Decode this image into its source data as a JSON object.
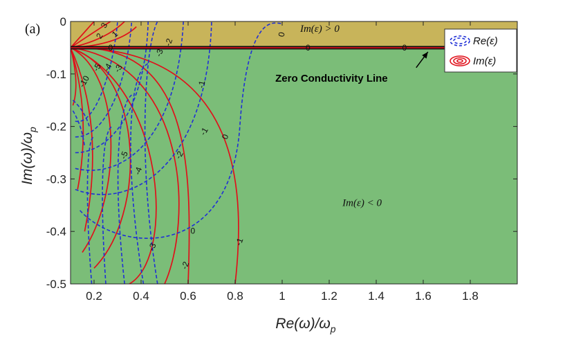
{
  "chart_data": {
    "type": "contour",
    "panel_label": "(a)",
    "xlabel": "Re(ω)/ω",
    "xlabel_sub": "p",
    "ylabel": "Im(ω)/ω",
    "ylabel_sub": "p",
    "xlim": [
      0.1,
      2.0
    ],
    "ylim": [
      -0.5,
      0
    ],
    "x_ticks": [
      0.2,
      0.4,
      0.6,
      0.8,
      1,
      1.2,
      1.4,
      1.6,
      1.8
    ],
    "x_tick_labels": [
      "0.2",
      "0.4",
      "0.6",
      "0.8",
      "1",
      "1.2",
      "1.4",
      "1.6",
      "1.8"
    ],
    "y_ticks": [
      0,
      -0.1,
      -0.2,
      -0.3,
      -0.4,
      -0.5
    ],
    "y_tick_labels": [
      "0",
      "-0.1",
      "-0.2",
      "-0.3",
      "-0.4",
      "-0.5"
    ],
    "zero_conductivity_line_y": -0.05,
    "regions": [
      {
        "label": "Im(ε) > 0",
        "color": "#c8b45a",
        "y_range": [
          -0.05,
          0
        ],
        "label_at": [
          1.16,
          -0.013
        ]
      },
      {
        "label": "Im(ε) < 0",
        "color": "#7bbd78",
        "y_range": [
          -0.5,
          -0.05
        ],
        "label_at": [
          1.34,
          -0.345
        ]
      }
    ],
    "legend": {
      "placement": "top-right",
      "entries": [
        {
          "name": "Re(ε)",
          "color": "#1f2fd6",
          "style": "dashed"
        },
        {
          "name": "Im(ε)",
          "color": "#e0101a",
          "style": "solid"
        }
      ]
    },
    "annotation": {
      "text": "Zero Conductivity Line",
      "text_at": [
        1.21,
        -0.108
      ],
      "arrow_to": [
        1.62,
        -0.058
      ]
    },
    "series": [
      {
        "name": "Re(ε)",
        "color": "#1f2fd6",
        "style": "dashed",
        "contour_levels": [
          0,
          -1,
          -2,
          -3,
          -4,
          -5
        ],
        "level_labels": [
          {
            "text": "0",
            "at": [
              1.0,
              -0.025
            ],
            "rot": -80
          },
          {
            "text": "0",
            "at": [
              0.76,
              -0.22
            ],
            "rot": -70
          },
          {
            "text": "0",
            "at": [
              0.62,
              -0.4
            ],
            "rot": 0
          },
          {
            "text": "-1",
            "at": [
              0.66,
              -0.12
            ],
            "rot": -80
          },
          {
            "text": "-2",
            "at": [
              0.52,
              -0.04
            ],
            "rot": -70
          },
          {
            "text": "-3",
            "at": [
              0.48,
              -0.06
            ],
            "rot": -70
          },
          {
            "text": "-4",
            "at": [
              0.39,
              -0.285
            ],
            "rot": -70
          },
          {
            "text": "-5",
            "at": [
              0.33,
              -0.255
            ],
            "rot": -70
          }
        ]
      },
      {
        "name": "Im(ε)",
        "color": "#e0101a",
        "style": "solid",
        "contour_levels": [
          3,
          2,
          1,
          -1,
          -2,
          -3,
          -4,
          -5,
          -10
        ],
        "level_labels": [
          {
            "text": "3",
            "at": [
              0.245,
              -0.008
            ],
            "rot": -60
          },
          {
            "text": "2",
            "at": [
              0.225,
              -0.028
            ],
            "rot": -60
          },
          {
            "text": "1",
            "at": [
              0.29,
              -0.025
            ],
            "rot": -40
          },
          {
            "text": "-10",
            "at": [
              0.16,
              -0.115
            ],
            "rot": -60
          },
          {
            "text": "-5",
            "at": [
              0.215,
              -0.088
            ],
            "rot": -60
          },
          {
            "text": "-4",
            "at": [
              0.26,
              -0.088
            ],
            "rot": -60
          },
          {
            "text": "-3",
            "at": [
              0.305,
              -0.09
            ],
            "rot": -60
          },
          {
            "text": "-2",
            "at": [
              0.565,
              -0.255
            ],
            "rot": -60
          },
          {
            "text": "-1",
            "at": [
              0.67,
              -0.21
            ],
            "rot": -60
          },
          {
            "text": "-3",
            "at": [
              0.45,
              -0.43
            ],
            "rot": -70
          },
          {
            "text": "-2",
            "at": [
              0.59,
              -0.465
            ],
            "rot": -70
          },
          {
            "text": "-1",
            "at": [
              0.82,
              -0.42
            ],
            "rot": -70
          }
        ]
      }
    ]
  }
}
